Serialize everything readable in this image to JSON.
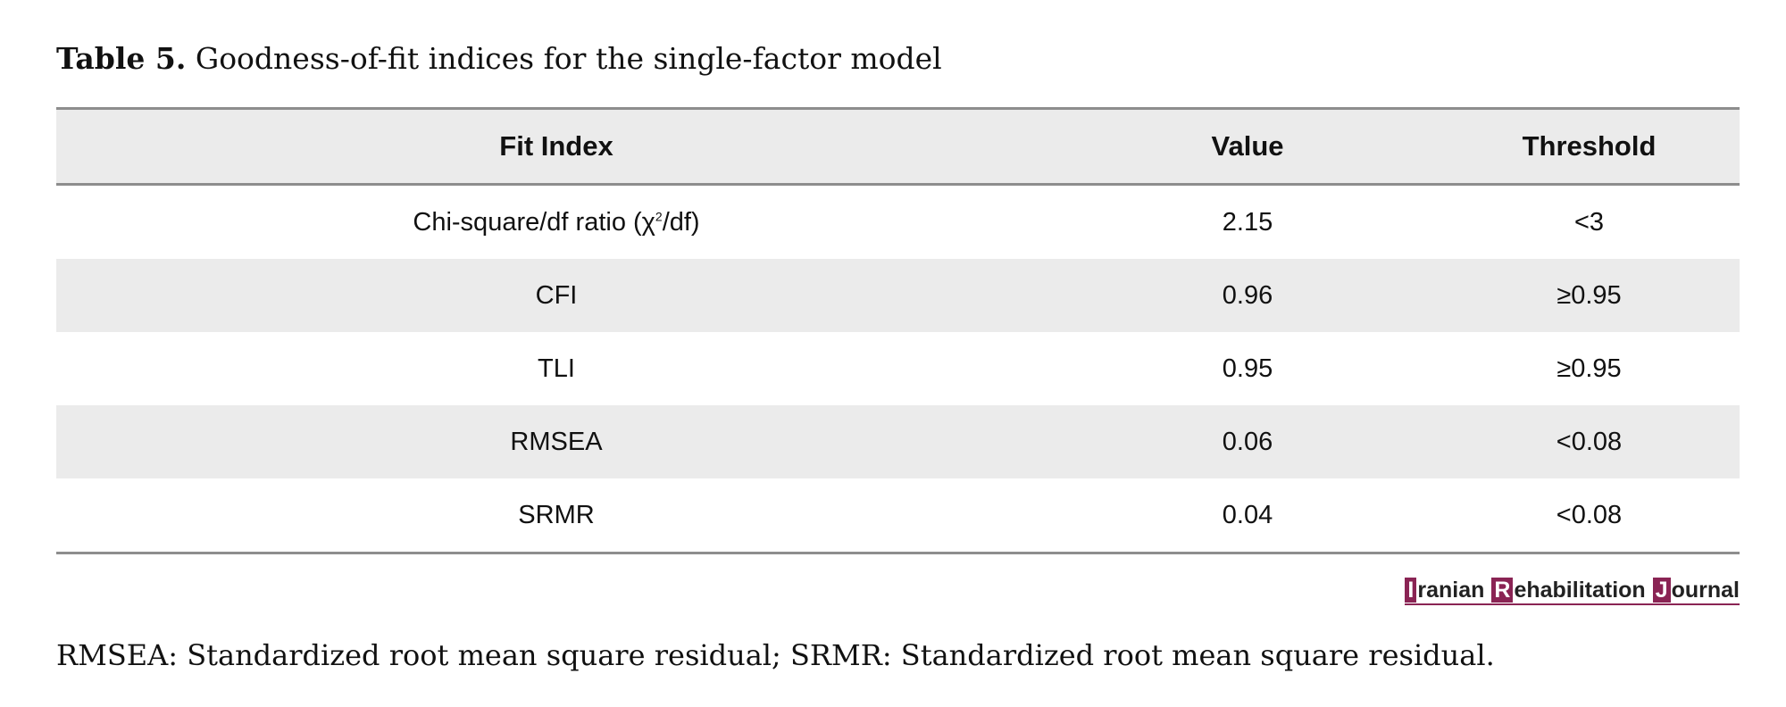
{
  "caption": {
    "label": "Table 5.",
    "text": "Goodness-of-fit indices for the single-factor model"
  },
  "table": {
    "headers": [
      "Fit Index",
      "Value",
      "Threshold"
    ],
    "rows": [
      {
        "index_prefix": "Chi-square/df ratio (χ",
        "index_sup": "2",
        "index_suffix": "/df)",
        "value": "2.15",
        "threshold": "<3"
      },
      {
        "index": "CFI",
        "value": "0.96",
        "threshold": "≥0.95"
      },
      {
        "index": "TLI",
        "value": "0.95",
        "threshold": "≥0.95"
      },
      {
        "index": "RMSEA",
        "value": "0.06",
        "threshold": "<0.08"
      },
      {
        "index": "SRMR",
        "value": "0.04",
        "threshold": "<0.08"
      }
    ]
  },
  "logo": {
    "words": [
      {
        "cap": "I",
        "rest": "ranian"
      },
      {
        "cap": "R",
        "rest": "ehabilitation"
      },
      {
        "cap": "J",
        "rest": "ournal"
      }
    ],
    "accent_color": "#8a2454"
  },
  "footnote": "RMSEA: Standardized root mean square residual; SRMR: Standardized root mean square residual.",
  "colors": {
    "header_bg": "#ebebeb",
    "rule": "#8d8d8d"
  }
}
